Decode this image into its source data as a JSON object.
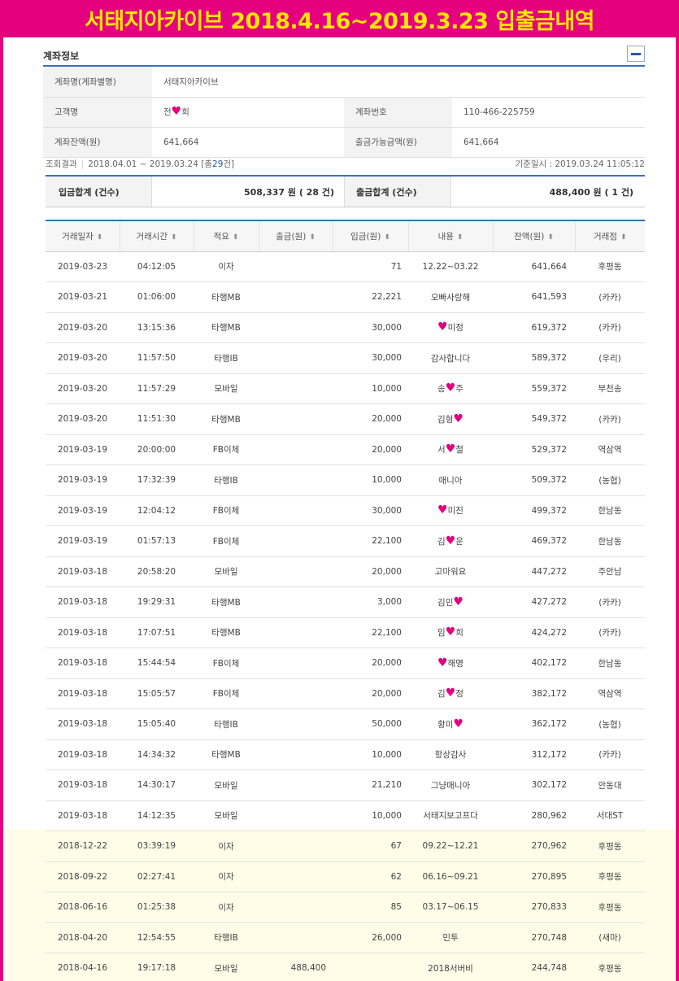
{
  "banner": {
    "title": "서태지아카이브 2018.4.16~2019.3.23 입출금내역"
  },
  "account_section": {
    "title": "계좌정보",
    "rows": [
      {
        "label": "계좌명(계좌별명)",
        "value": "서태지아카이브"
      },
      {
        "label": "고객명",
        "value": "전♥희",
        "label2": "계좌번호",
        "value2": "110-466-225759"
      },
      {
        "label": "계좌잔액(원)",
        "value": "641,664",
        "label2": "출금가능금액(원)",
        "value2": "641,664"
      }
    ]
  },
  "query": {
    "label": "조회결과",
    "period": "2018.04.01 ~ 2019.03.24",
    "total_prefix": "[총",
    "count": "29",
    "total_suffix": "건]",
    "base_label": "기준일시 :",
    "base_time": "2019.03.24 11:05:12"
  },
  "totals": {
    "deposit_label": "입금합계 (건수)",
    "deposit_value": "508,337 원 ( 28 건)",
    "withdraw_label": "출금합계 (건수)",
    "withdraw_value": "488,400 원 ( 1 건)"
  },
  "columns": [
    "거래일자",
    "거래시간",
    "적요",
    "출금(원)",
    "입금(원)",
    "내용",
    "잔액(원)",
    "거래점"
  ],
  "transactions": [
    [
      "2019-03-23",
      "04:12:05",
      "이자",
      "",
      "71",
      "12.22~03.22",
      "641,664",
      "후평동"
    ],
    [
      "2019-03-21",
      "01:06:00",
      "타행MB",
      "",
      "22,221",
      "오빠사랑해",
      "641,593",
      "(카카)"
    ],
    [
      "2019-03-20",
      "13:15:36",
      "타행MB",
      "",
      "30,000",
      "♥미정",
      "619,372",
      "(카카)"
    ],
    [
      "2019-03-20",
      "11:57:50",
      "타행IB",
      "",
      "30,000",
      "감사합니다",
      "589,372",
      "(우리)"
    ],
    [
      "2019-03-20",
      "11:57:29",
      "모바일",
      "",
      "10,000",
      "송♥주",
      "559,372",
      "부천송"
    ],
    [
      "2019-03-20",
      "11:51:30",
      "타행MB",
      "",
      "20,000",
      "김형♥",
      "549,372",
      "(카카)"
    ],
    [
      "2019-03-19",
      "20:00:00",
      "FB이체",
      "",
      "20,000",
      "서♥철",
      "529,372",
      "역삼역"
    ],
    [
      "2019-03-19",
      "17:32:39",
      "타행IB",
      "",
      "10,000",
      "매니아",
      "509,372",
      "(농협)"
    ],
    [
      "2019-03-19",
      "12:04:12",
      "FB이체",
      "",
      "30,000",
      "♥미진",
      "499,372",
      "한남동"
    ],
    [
      "2019-03-19",
      "01:57:13",
      "FB이체",
      "",
      "22,100",
      "김♥운",
      "469,372",
      "한남동"
    ],
    [
      "2019-03-18",
      "20:58:20",
      "모바일",
      "",
      "20,000",
      "고마워요",
      "447,272",
      "주안남"
    ],
    [
      "2019-03-18",
      "19:29:31",
      "타행MB",
      "",
      "3,000",
      "김민♥",
      "427,272",
      "(카카)"
    ],
    [
      "2019-03-18",
      "17:07:51",
      "타행MB",
      "",
      "22,100",
      "임♥희",
      "424,272",
      "(카카)"
    ],
    [
      "2019-03-18",
      "15:44:54",
      "FB이체",
      "",
      "20,000",
      "♥해명",
      "402,172",
      "한남동"
    ],
    [
      "2019-03-18",
      "15:05:57",
      "FB이체",
      "",
      "20,000",
      "김♥정",
      "382,172",
      "역삼역"
    ],
    [
      "2019-03-18",
      "15:05:40",
      "타행IB",
      "",
      "50,000",
      "황미♥",
      "362,172",
      "(농협)"
    ],
    [
      "2019-03-18",
      "14:34:32",
      "타행MB",
      "",
      "10,000",
      "항상감사",
      "312,172",
      "(카카)"
    ],
    [
      "2019-03-18",
      "14:30:17",
      "모바일",
      "",
      "21,210",
      "그냥매니아",
      "302,172",
      "안동대"
    ],
    [
      "2019-03-18",
      "14:12:35",
      "모바일",
      "",
      "10,000",
      "서태지보고프다",
      "280,962",
      "서대ST"
    ],
    [
      "2018-12-22",
      "03:39:19",
      "이자",
      "",
      "67",
      "09.22~12.21",
      "270,962",
      "후평동"
    ],
    [
      "2018-09-22",
      "02:27:41",
      "이자",
      "",
      "62",
      "06.16~09.21",
      "270,895",
      "후평동"
    ],
    [
      "2018-06-16",
      "01:25:38",
      "이자",
      "",
      "85",
      "03.17~06.15",
      "270,833",
      "후평동"
    ],
    [
      "2018-04-20",
      "12:54:55",
      "타행IB",
      "",
      "26,000",
      "민투",
      "270,748",
      "(새마)"
    ],
    [
      "2018-04-16",
      "19:17:18",
      "모바일",
      "488,400",
      "",
      "2018서버비",
      "244,748",
      "후평동"
    ]
  ],
  "icons": {
    "collapse": "minus-icon",
    "sort": "sort-arrows-icon"
  },
  "colors": {
    "frame": "#e4007e",
    "banner_text": "#ffe600",
    "accent": "#3a6fc4",
    "highlight_rows": "#fffde8"
  }
}
